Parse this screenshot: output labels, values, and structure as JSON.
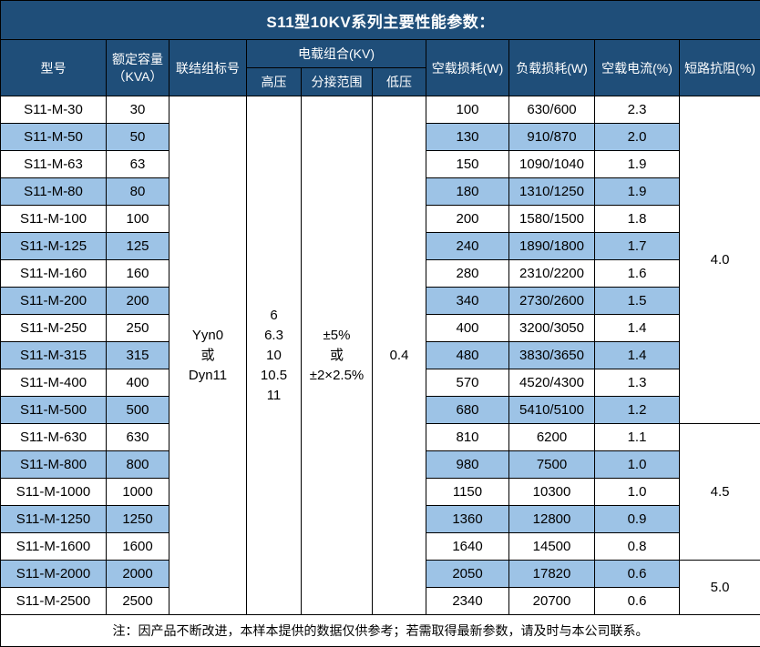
{
  "title": "S11型10KV系列主要性能参数：",
  "table": {
    "headers": {
      "model": "型号",
      "capacity_line1": "额定容量",
      "capacity_line2": "（KVA）",
      "vector_group": "联结组标号",
      "voltage_combo": "电载组合(KV)",
      "hv": "高压",
      "tap_range": "分接范围",
      "lv": "低压",
      "no_load_loss": "空载损耗(W)",
      "load_loss": "负载损耗(W)",
      "no_load_current": "空载电流(%)",
      "impedance": "短路抗阻(%)"
    },
    "merged": {
      "vector_group_lines": [
        "Yyn0",
        "或",
        "Dyn11"
      ],
      "hv_lines": [
        "6",
        "6.3",
        "10",
        "10.5",
        "11"
      ],
      "tap_range_lines": [
        "±5%",
        "或",
        "±2×2.5%"
      ],
      "lv_value": "0.4"
    },
    "rows": [
      {
        "model": "S11-M-30",
        "kva": "30",
        "no_load_loss": "100",
        "load_loss": "630/600",
        "no_load_current": "2.3",
        "shaded": false
      },
      {
        "model": "S11-M-50",
        "kva": "50",
        "no_load_loss": "130",
        "load_loss": "910/870",
        "no_load_current": "2.0",
        "shaded": true
      },
      {
        "model": "S11-M-63",
        "kva": "63",
        "no_load_loss": "150",
        "load_loss": "1090/1040",
        "no_load_current": "1.9",
        "shaded": false
      },
      {
        "model": "S11-M-80",
        "kva": "80",
        "no_load_loss": "180",
        "load_loss": "1310/1250",
        "no_load_current": "1.9",
        "shaded": true
      },
      {
        "model": "S11-M-100",
        "kva": "100",
        "no_load_loss": "200",
        "load_loss": "1580/1500",
        "no_load_current": "1.8",
        "shaded": false
      },
      {
        "model": "S11-M-125",
        "kva": "125",
        "no_load_loss": "240",
        "load_loss": "1890/1800",
        "no_load_current": "1.7",
        "shaded": true
      },
      {
        "model": "S11-M-160",
        "kva": "160",
        "no_load_loss": "280",
        "load_loss": "2310/2200",
        "no_load_current": "1.6",
        "shaded": false
      },
      {
        "model": "S11-M-200",
        "kva": "200",
        "no_load_loss": "340",
        "load_loss": "2730/2600",
        "no_load_current": "1.5",
        "shaded": true
      },
      {
        "model": "S11-M-250",
        "kva": "250",
        "no_load_loss": "400",
        "load_loss": "3200/3050",
        "no_load_current": "1.4",
        "shaded": false
      },
      {
        "model": "S11-M-315",
        "kva": "315",
        "no_load_loss": "480",
        "load_loss": "3830/3650",
        "no_load_current": "1.4",
        "shaded": true
      },
      {
        "model": "S11-M-400",
        "kva": "400",
        "no_load_loss": "570",
        "load_loss": "4520/4300",
        "no_load_current": "1.3",
        "shaded": false
      },
      {
        "model": "S11-M-500",
        "kva": "500",
        "no_load_loss": "680",
        "load_loss": "5410/5100",
        "no_load_current": "1.2",
        "shaded": true
      },
      {
        "model": "S11-M-630",
        "kva": "630",
        "no_load_loss": "810",
        "load_loss": "6200",
        "no_load_current": "1.1",
        "shaded": false
      },
      {
        "model": "S11-M-800",
        "kva": "800",
        "no_load_loss": "980",
        "load_loss": "7500",
        "no_load_current": "1.0",
        "shaded": true
      },
      {
        "model": "S11-M-1000",
        "kva": "1000",
        "no_load_loss": "1150",
        "load_loss": "10300",
        "no_load_current": "1.0",
        "shaded": false
      },
      {
        "model": "S11-M-1250",
        "kva": "1250",
        "no_load_loss": "1360",
        "load_loss": "12800",
        "no_load_current": "0.9",
        "shaded": true
      },
      {
        "model": "S11-M-1600",
        "kva": "1600",
        "no_load_loss": "1640",
        "load_loss": "14500",
        "no_load_current": "0.8",
        "shaded": false
      },
      {
        "model": "S11-M-2000",
        "kva": "2000",
        "no_load_loss": "2050",
        "load_loss": "17820",
        "no_load_current": "0.6",
        "shaded": true
      },
      {
        "model": "S11-M-2500",
        "kva": "2500",
        "no_load_loss": "2340",
        "load_loss": "20700",
        "no_load_current": "0.6",
        "shaded": false
      }
    ],
    "impedance_groups": [
      {
        "value": "4.0",
        "span": 12
      },
      {
        "value": "4.5",
        "span": 5
      },
      {
        "value": "5.0",
        "span": 2
      }
    ]
  },
  "footer_note": "注：因产品不断改进，本样本提供的数据仅供参考；若需取得最新参数，请及时与本公司联系。",
  "colors": {
    "header_bg": "#1F4E79",
    "header_text": "#ffffff",
    "stripe_bg": "#9DC3E6",
    "border": "#000000"
  }
}
